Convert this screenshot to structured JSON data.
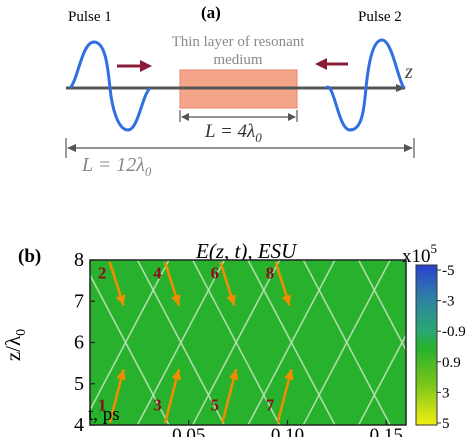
{
  "panel_a": {
    "label": "(a)",
    "pulse1_label": "Pulse 1",
    "pulse2_label": "Pulse 2",
    "medium_label_line1": "Thin layer of resonant",
    "medium_label_line2": "medium",
    "axis_label": "z",
    "inner_length_label": "L = 4λ",
    "inner_length_sub": "0",
    "outer_length_label": "L = 12λ",
    "outer_length_sub": "0"
  },
  "panel_b": {
    "label": "(b)",
    "title": "E(z, t), ESU",
    "ylabel": "z/λ",
    "ylabel_sub": "0",
    "xlabel": "t, ps",
    "colorbar_exponent": "x10",
    "colorbar_exponent_power": "5",
    "colorbar_ticks": [
      "-5",
      "-3",
      "-0.9",
      "0.9",
      "3",
      "5"
    ],
    "arrow_labels": [
      "1",
      "2",
      "3",
      "4",
      "5",
      "6",
      "7",
      "8"
    ]
  },
  "chart_data": {
    "type": "heatmap",
    "title": "E(z, t), ESU",
    "xlabel": "t, ps",
    "ylabel": "z/λ0",
    "xlim": [
      0,
      0.16
    ],
    "ylim": [
      4,
      8
    ],
    "x_ticks": [
      "0.05",
      "0.10",
      "0.15"
    ],
    "y_ticks": [
      "4",
      "5",
      "6",
      "7",
      "8"
    ],
    "colorbar": {
      "label": "x10^5",
      "ticks": [
        -5,
        -3,
        -0.9,
        0.9,
        3,
        5
      ]
    },
    "colors": {
      "field": "#27b12d",
      "lines": "#bfe0b8",
      "arrows": "#f08c00",
      "numbers": "#8a0f1a"
    }
  }
}
